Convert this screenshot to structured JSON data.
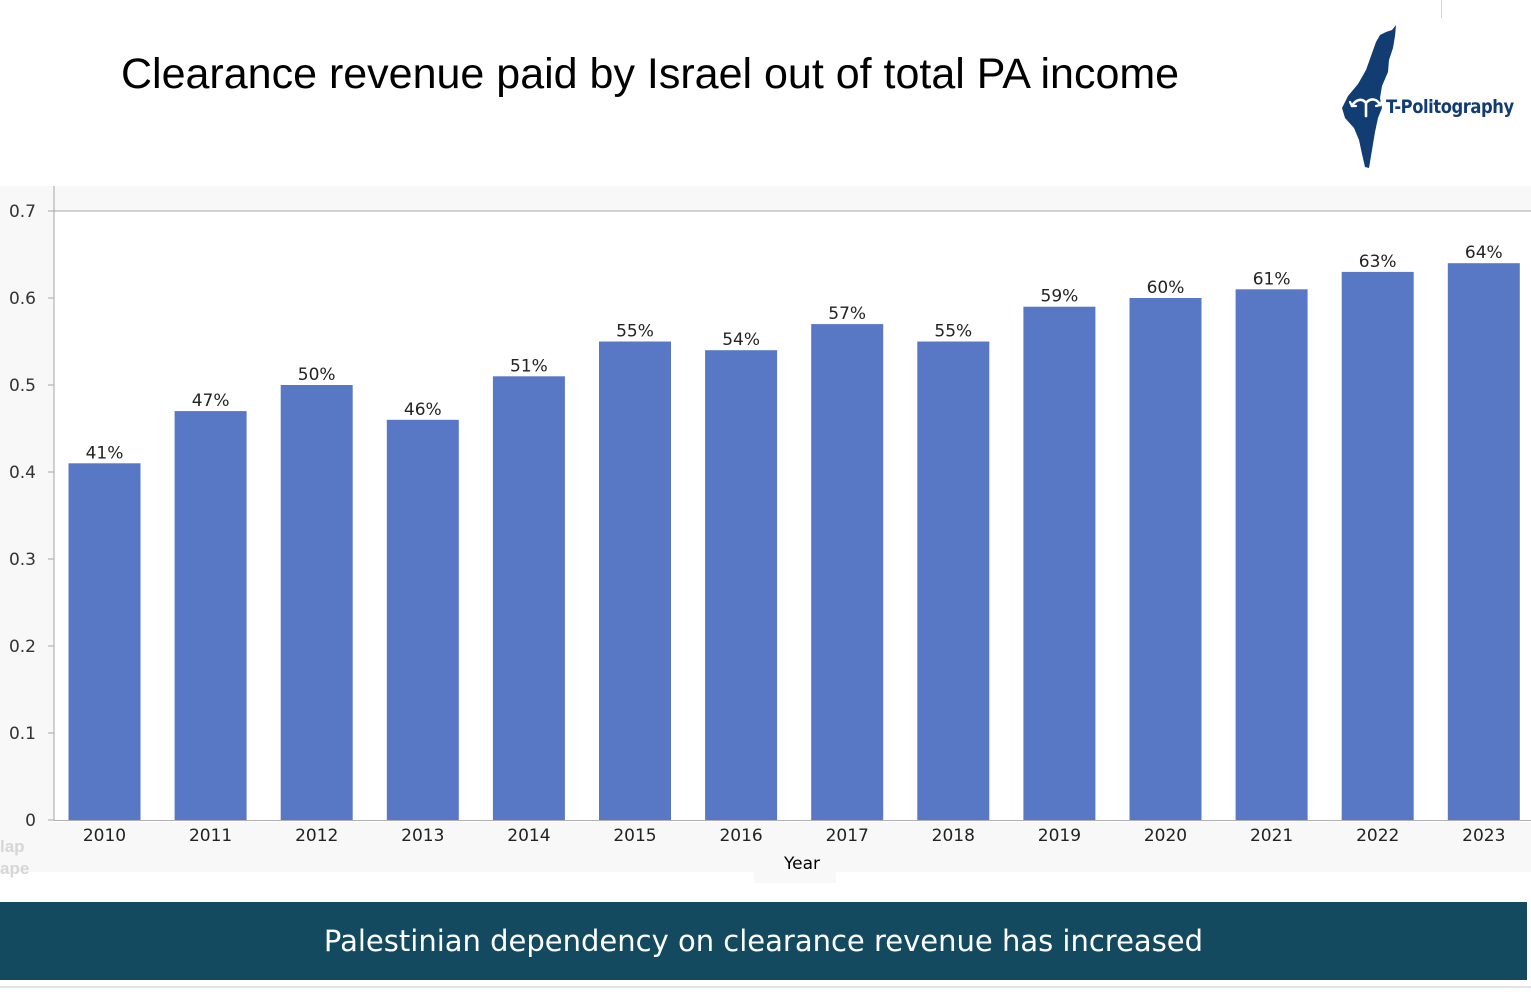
{
  "slide": {
    "title": "Clearance revenue paid by Israel out of total PA income",
    "banner_text": "Palestinian dependency on clearance revenue has increased",
    "logo": {
      "text": "T-Politography",
      "icon": "israel-map-icon",
      "color": "#123d73"
    }
  },
  "colors": {
    "bar": "#5877c4",
    "banner": "#134a60"
  },
  "chart_data": {
    "type": "bar",
    "title": "",
    "xlabel": "Year",
    "ylabel": "",
    "categories": [
      "2010",
      "2011",
      "2012",
      "2013",
      "2014",
      "2015",
      "2016",
      "2017",
      "2018",
      "2019",
      "2020",
      "2021",
      "2022",
      "2023"
    ],
    "values": [
      0.41,
      0.47,
      0.5,
      0.46,
      0.51,
      0.55,
      0.54,
      0.57,
      0.55,
      0.59,
      0.6,
      0.61,
      0.63,
      0.64
    ],
    "data_labels": [
      "41%",
      "47%",
      "50%",
      "46%",
      "51%",
      "55%",
      "54%",
      "57%",
      "55%",
      "59%",
      "60%",
      "61%",
      "63%",
      "64%"
    ],
    "yticks": [
      0,
      0.1,
      0.2,
      0.3,
      0.4,
      0.5,
      0.6,
      0.7
    ],
    "ytick_labels": [
      "0",
      "0.1",
      "0.2",
      "0.3",
      "0.4",
      "0.5",
      "0.6",
      "0.7"
    ],
    "ylim": [
      0,
      0.7
    ],
    "grid": false,
    "legend": "none"
  }
}
